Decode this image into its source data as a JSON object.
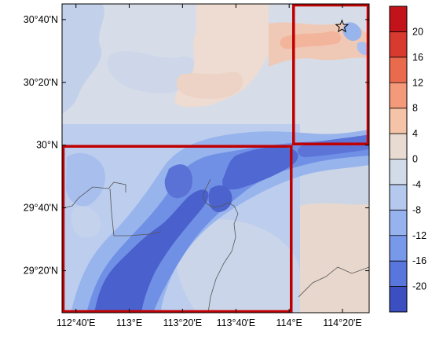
{
  "map": {
    "lat_ticks": [
      {
        "value": 30.667,
        "label": "30°40'N"
      },
      {
        "value": 30.333,
        "label": "30°20'N"
      },
      {
        "value": 30.0,
        "label": "30°N"
      },
      {
        "value": 29.667,
        "label": "29°40'N"
      },
      {
        "value": 29.333,
        "label": "29°20'N"
      }
    ],
    "lon_ticks": [
      {
        "value": 112.667,
        "label": "112°40'E"
      },
      {
        "value": 113.0,
        "label": "113°E"
      },
      {
        "value": 113.333,
        "label": "113°20'E"
      },
      {
        "value": 113.667,
        "label": "113°40'E"
      },
      {
        "value": 114.0,
        "label": "114°E"
      },
      {
        "value": 114.333,
        "label": "114°20'E"
      }
    ],
    "extent": {
      "lon_min": 112.58,
      "lon_max": 114.5,
      "lat_min": 29.11,
      "lat_max": 30.75
    },
    "marker": {
      "symbol": "star",
      "lon": 114.33,
      "lat": 30.63
    },
    "highlight_boxes": [
      {
        "name": "northeast-box",
        "lon_min": 114.02,
        "lon_max": 114.5,
        "lat_min": 30.0,
        "lat_max": 30.75,
        "color": "#c00000"
      },
      {
        "name": "southwest-box",
        "lon_min": 112.58,
        "lon_max": 114.02,
        "lat_min": 29.11,
        "lat_max": 30.0,
        "color": "#c00000"
      }
    ]
  },
  "colorbar": {
    "levels": [
      "20",
      "16",
      "12",
      "8",
      "4",
      "0",
      "-4",
      "-8",
      "-12",
      "-16",
      "-20"
    ],
    "colors": [
      "#c2121a",
      "#d83a30",
      "#ea6a4e",
      "#f49a7a",
      "#f5c3a8",
      "#e8dcd2",
      "#d2dce9",
      "#b5c8ee",
      "#96b3ef",
      "#7898ea",
      "#5876db",
      "#3b4fc0"
    ]
  },
  "palette": {
    "neutral_bg": "#d6dde8",
    "warm_light": "#f0d6c8",
    "warm_mid": "#f3b8a0",
    "cool_light": "#b9cbee",
    "cool_mid": "#8fb0ee",
    "cool_strong": "#6688e2",
    "cool_deep": "#4a63cf",
    "boundary_line": "#555555"
  }
}
